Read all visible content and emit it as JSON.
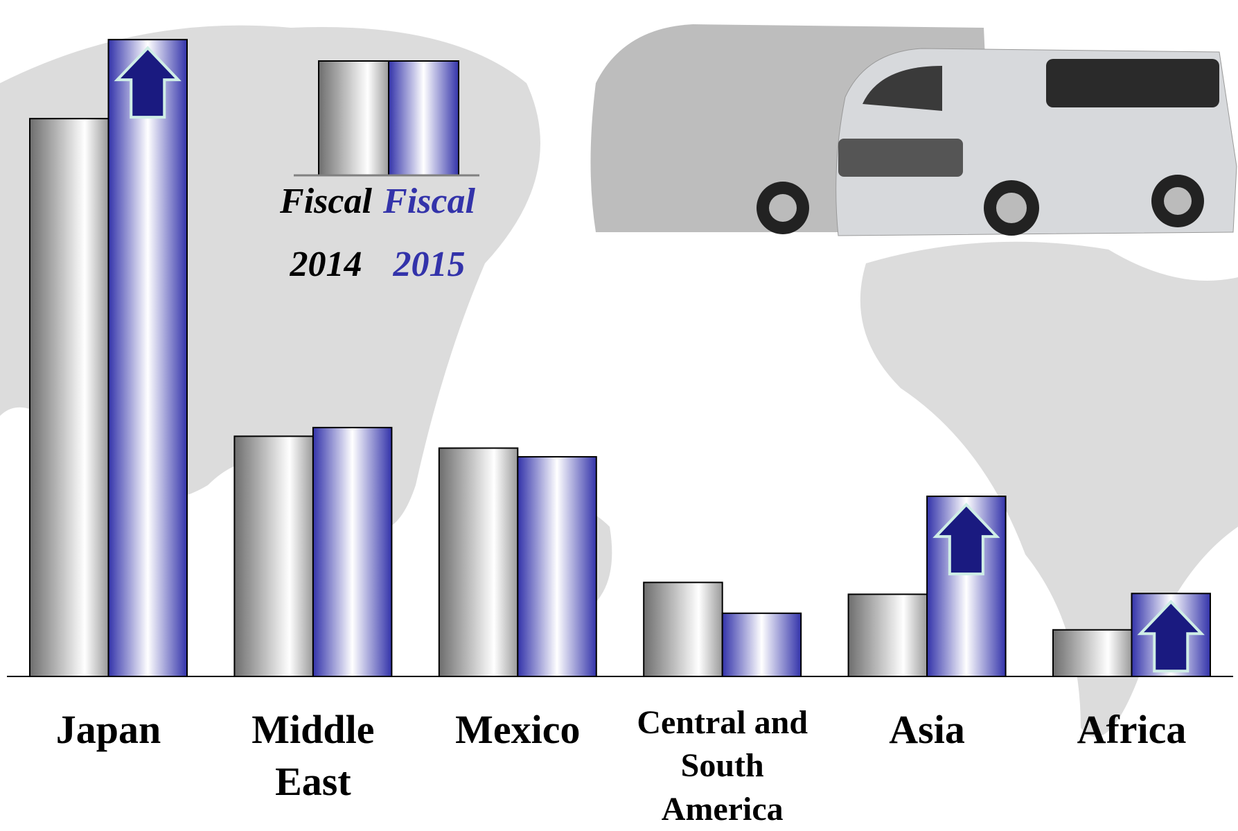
{
  "chart_data": {
    "type": "bar",
    "categories": [
      "Japan",
      "Middle East",
      "Mexico",
      "Central and South America",
      "Asia",
      "Africa"
    ],
    "series": [
      {
        "name": "Fiscal 2014",
        "color": "#808080",
        "values": [
          706,
          304,
          289,
          119,
          104,
          59
        ]
      },
      {
        "name": "Fiscal 2015",
        "color": "#3333aa",
        "values": [
          806,
          315,
          278,
          80,
          228,
          105
        ]
      }
    ],
    "ylim": [
      0,
      850
    ]
  }
}
